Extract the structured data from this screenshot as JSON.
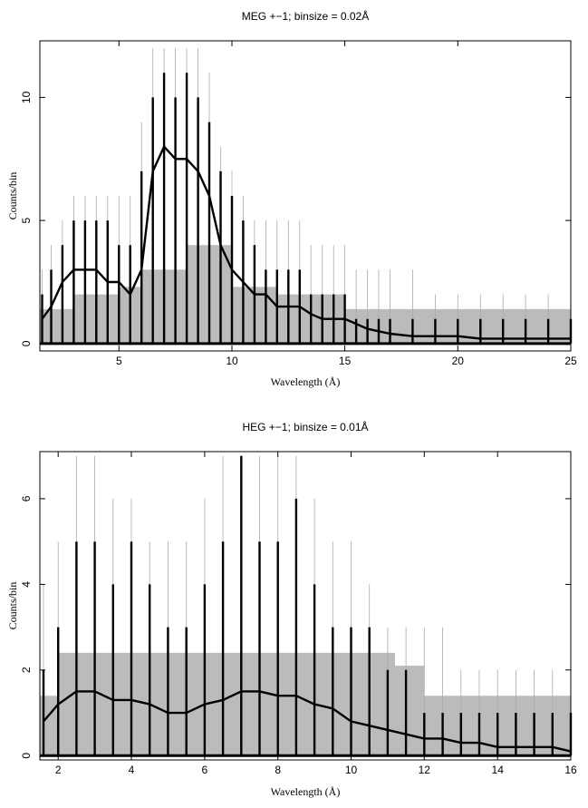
{
  "chart_data": [
    {
      "type": "line",
      "title": "MEG +−1; binsize = 0.02Å",
      "xlabel": "Wavelength (Å)",
      "ylabel": "Counts/bin",
      "xlim": [
        1.5,
        25
      ],
      "ylim": [
        -0.3,
        12.3
      ],
      "xticks": [
        5,
        10,
        15,
        20,
        25
      ],
      "yticks": [
        0,
        5,
        10
      ],
      "grid": false,
      "colors": {
        "data": "#000000",
        "model": "#aaaaaa",
        "band": "#bbbbbb"
      },
      "series": [
        {
          "role": "data",
          "x": [
            1.6,
            2.0,
            2.5,
            3.0,
            3.5,
            4.0,
            4.5,
            5.0,
            5.5,
            6.0,
            6.5,
            7.0,
            7.5,
            8.0,
            8.5,
            9.0,
            9.5,
            10.0,
            10.5,
            11.0,
            11.5,
            12.0,
            12.5,
            13.0,
            13.5,
            14.0,
            14.5,
            15.0,
            15.5,
            16.0,
            16.5,
            17.0,
            18.0,
            19.0,
            20.0,
            21.0,
            22.0,
            23.0,
            24.0,
            25.0
          ],
          "y": [
            1,
            1.5,
            2.5,
            3,
            3,
            3,
            2.5,
            2.5,
            2,
            3,
            7,
            8,
            7.5,
            7.5,
            7,
            6,
            4,
            3,
            2.5,
            2,
            2,
            1.5,
            1.5,
            1.5,
            1.2,
            1,
            1,
            1,
            0.8,
            0.6,
            0.5,
            0.4,
            0.3,
            0.3,
            0.3,
            0.2,
            0.2,
            0.2,
            0.2,
            0.2
          ],
          "max": [
            2,
            3,
            4,
            5,
            5,
            5,
            5,
            4,
            4,
            7,
            10,
            11,
            10,
            11,
            10,
            9,
            7,
            6,
            5,
            4,
            3,
            3,
            3,
            3,
            2,
            2,
            2,
            2,
            1,
            1,
            1,
            1,
            1,
            1,
            1,
            1,
            1,
            1,
            1,
            1
          ]
        },
        {
          "role": "model",
          "x": [
            1.6,
            2.0,
            2.5,
            3.0,
            3.5,
            4.0,
            4.5,
            5.0,
            5.5,
            6.0,
            6.5,
            7.0,
            7.5,
            8.0,
            8.5,
            9.0,
            9.5,
            10.0,
            10.5,
            11.0,
            11.5,
            12.0,
            12.5,
            13.0,
            13.5,
            14.0,
            14.5,
            15.0,
            15.5,
            16.0,
            16.5,
            17.0,
            18.0,
            19.0,
            20.0,
            21.0,
            22.0,
            23.0,
            24.0,
            25.0
          ],
          "y": [
            1,
            1.5,
            2.5,
            3,
            3,
            3,
            2.5,
            2.5,
            2,
            3,
            7,
            8,
            7.5,
            7.5,
            7,
            6,
            4,
            3,
            2.5,
            2,
            2,
            1.5,
            1.5,
            1.5,
            1.2,
            1,
            1,
            1,
            0.8,
            0.6,
            0.5,
            0.4,
            0.3,
            0.3,
            0.3,
            0.2,
            0.2,
            0.2,
            0.2,
            0.2
          ],
          "max": [
            3,
            4,
            5,
            6,
            6,
            6,
            6,
            6,
            6,
            9,
            12,
            12,
            12,
            12,
            12,
            11,
            8,
            7,
            6,
            5,
            5,
            5,
            5,
            5,
            4,
            4,
            4,
            4,
            3,
            3,
            3,
            3,
            3,
            2,
            2,
            2,
            2,
            2,
            2,
            2
          ]
        },
        {
          "role": "band",
          "x": [
            1.5,
            3.0,
            5.0,
            6.0,
            8.0,
            10.0,
            12.0,
            15.0,
            16.0,
            25.0
          ],
          "y": [
            1.4,
            2.0,
            2.3,
            3.0,
            4.0,
            2.3,
            2.0,
            1.4,
            1.4,
            1.4
          ]
        }
      ]
    },
    {
      "type": "line",
      "title": "HEG +−1; binsize = 0.01Å",
      "xlabel": "Wavelength (Å)",
      "ylabel": "Counts/bin",
      "xlim": [
        1.5,
        16
      ],
      "ylim": [
        -0.1,
        7.1
      ],
      "xticks": [
        2,
        4,
        6,
        8,
        10,
        12,
        14,
        16
      ],
      "yticks": [
        0,
        2,
        4,
        6
      ],
      "grid": false,
      "colors": {
        "data": "#000000",
        "model": "#aaaaaa",
        "band": "#bbbbbb"
      },
      "series": [
        {
          "role": "data",
          "x": [
            1.6,
            2.0,
            2.5,
            3.0,
            3.5,
            4.0,
            4.5,
            5.0,
            5.5,
            6.0,
            6.5,
            7.0,
            7.5,
            8.0,
            8.5,
            9.0,
            9.5,
            10.0,
            10.5,
            11.0,
            11.5,
            12.0,
            12.5,
            13.0,
            13.5,
            14.0,
            14.5,
            15.0,
            15.5,
            16.0
          ],
          "y": [
            0.8,
            1.2,
            1.5,
            1.5,
            1.3,
            1.3,
            1.2,
            1.0,
            1.0,
            1.2,
            1.3,
            1.5,
            1.5,
            1.4,
            1.4,
            1.2,
            1.1,
            0.8,
            0.7,
            0.6,
            0.5,
            0.4,
            0.4,
            0.3,
            0.3,
            0.2,
            0.2,
            0.2,
            0.2,
            0.1
          ],
          "max": [
            2,
            3,
            5,
            5,
            4,
            5,
            4,
            3,
            3,
            4,
            5,
            7,
            5,
            5,
            6,
            4,
            3,
            3,
            3,
            2,
            2,
            1,
            1,
            1,
            1,
            1,
            1,
            1,
            1,
            1
          ]
        },
        {
          "role": "model",
          "x": [
            1.6,
            2.0,
            2.5,
            3.0,
            3.5,
            4.0,
            4.5,
            5.0,
            5.5,
            6.0,
            6.5,
            7.0,
            7.5,
            8.0,
            8.5,
            9.0,
            9.5,
            10.0,
            10.5,
            11.0,
            11.5,
            12.0,
            12.5,
            13.0,
            13.5,
            14.0,
            14.5,
            15.0,
            15.5,
            16.0
          ],
          "y": [
            0.8,
            1.2,
            1.5,
            1.5,
            1.3,
            1.3,
            1.2,
            1.0,
            1.0,
            1.2,
            1.3,
            1.5,
            1.5,
            1.4,
            1.4,
            1.2,
            1.1,
            0.8,
            0.7,
            0.6,
            0.5,
            0.4,
            0.4,
            0.3,
            0.3,
            0.2,
            0.2,
            0.2,
            0.2,
            0.1
          ],
          "max": [
            4,
            5,
            7,
            7,
            6,
            6,
            5,
            5,
            5,
            6,
            7,
            7,
            7,
            7,
            7,
            6,
            5,
            5,
            4,
            3,
            3,
            3,
            3,
            2,
            2,
            2,
            2,
            2,
            2,
            2
          ]
        },
        {
          "role": "band",
          "x": [
            1.5,
            2.0,
            4.0,
            5.0,
            8.0,
            11.2,
            12.0,
            16.0
          ],
          "y": [
            1.4,
            2.4,
            2.4,
            2.4,
            2.4,
            2.1,
            1.4,
            1.4
          ]
        }
      ]
    }
  ]
}
